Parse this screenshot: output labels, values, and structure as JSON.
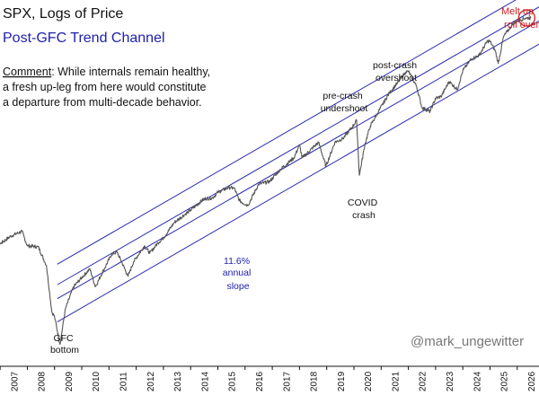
{
  "title": "SPX, Logs of Price",
  "subtitle": "Post-GFC Trend Channel",
  "comment": {
    "label": "Comment",
    "lines": [
      ": While internals remain healthy,",
      "a fresh up-leg from here would constitute",
      "a departure from multi-decade behavior."
    ]
  },
  "annotations": {
    "gfc": [
      "GFC",
      "bottom"
    ],
    "slope": [
      "11.6%",
      "annual",
      "slope"
    ],
    "pre_crash": [
      "pre-crash",
      "undershoot"
    ],
    "covid": [
      "COVID",
      "crash"
    ],
    "post_crash": [
      "post-crash",
      "overshoot"
    ],
    "melt": [
      "Melt up",
      "roll over"
    ]
  },
  "handle": "@mark_ungewitter",
  "colors": {
    "price": "#555555",
    "channel": "#2b2bb0",
    "title": "#111111",
    "subtitle": "#2020b0",
    "accent": "#cc1f1f"
  },
  "chart_data": {
    "type": "line",
    "title": "SPX, Logs of Price",
    "subtitle": "Post-GFC Trend Channel",
    "x_ticks": [
      "2007",
      "2008",
      "2009",
      "2010",
      "2011",
      "2012",
      "2013",
      "2014",
      "2015",
      "2016",
      "2017",
      "2018",
      "2019",
      "2020",
      "2021",
      "2022",
      "2023",
      "2024",
      "2025",
      "2026"
    ],
    "xlim": [
      2006.5,
      2026.8
    ],
    "y_scale": "log",
    "ylim": [
      600,
      7500
    ],
    "grid": false,
    "series": [
      {
        "x": [
          2006.5,
          2007.0,
          2007.4,
          2007.8,
          2008.0,
          2008.4,
          2008.7,
          2008.9,
          2009.0,
          2009.2,
          2009.4,
          2009.7,
          2010.0,
          2010.3,
          2010.5,
          2010.8,
          2011.1,
          2011.3,
          2011.7,
          2011.9,
          2012.3,
          2012.5,
          2012.8,
          2013.0,
          2013.4,
          2013.8,
          2014.0,
          2014.5,
          2014.8,
          2015.0,
          2015.4,
          2015.6,
          2015.8,
          2016.1,
          2016.5,
          2016.9,
          2017.3,
          2017.8,
          2018.0,
          2018.1,
          2018.7,
          2018.97,
          2019.3,
          2019.6,
          2019.9,
          2020.1,
          2020.2,
          2020.4,
          2020.6,
          2020.9,
          2021.3,
          2021.6,
          2021.9,
          2022.0,
          2022.3,
          2022.5,
          2022.8,
          2023.0,
          2023.2,
          2023.5,
          2023.8,
          2024.0,
          2024.3,
          2024.6,
          2024.9,
          2025.0,
          2025.2,
          2025.3,
          2025.5,
          2025.8,
          2026.0,
          2026.3,
          2026.5
        ],
        "y": [
          1270,
          1420,
          1500,
          1550,
          1400,
          1390,
          1220,
          880,
          850,
          700,
          900,
          1050,
          1120,
          1190,
          1050,
          1180,
          1320,
          1340,
          1130,
          1250,
          1400,
          1330,
          1430,
          1480,
          1650,
          1750,
          1800,
          1950,
          1960,
          2040,
          2110,
          2100,
          1920,
          1860,
          2160,
          2200,
          2400,
          2600,
          2850,
          2600,
          2900,
          2450,
          2900,
          2980,
          3200,
          3380,
          2300,
          2850,
          3250,
          3600,
          4100,
          4400,
          4750,
          4780,
          4300,
          3700,
          3600,
          3950,
          4000,
          4450,
          4200,
          4800,
          5200,
          5350,
          5900,
          5900,
          5500,
          5050,
          6100,
          6600,
          6800,
          6950,
          6950
        ]
      }
    ],
    "channel": {
      "type": "log-linear",
      "annual_slope_pct": 11.6,
      "lines": [
        {
          "y2009": 1230
        },
        {
          "y2009": 1065
        },
        {
          "y2009": 965
        },
        {
          "y2009": 820
        }
      ]
    }
  }
}
